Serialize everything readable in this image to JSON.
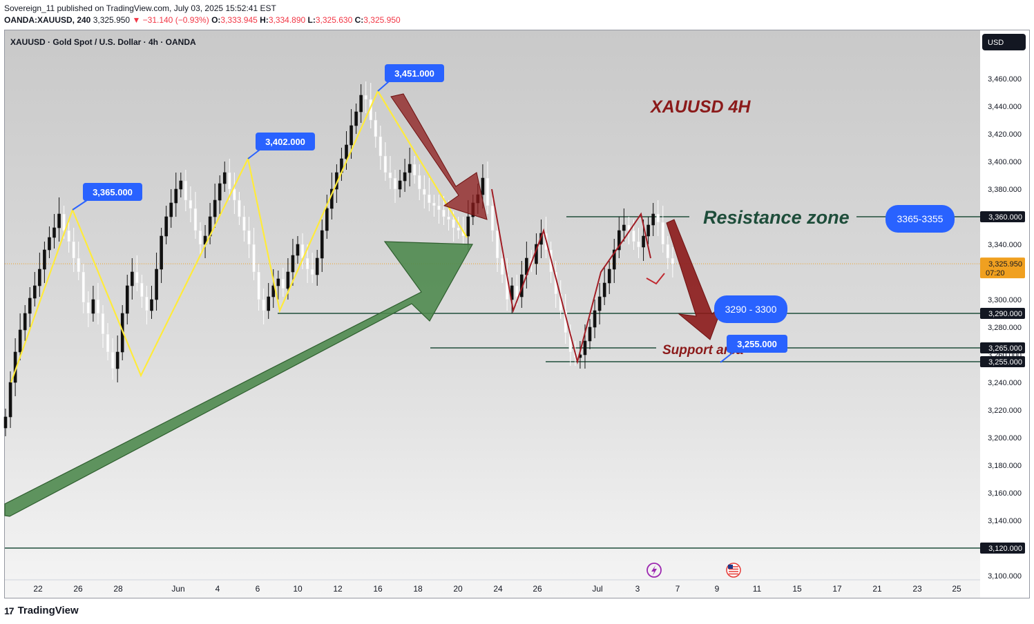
{
  "header": {
    "author_line": "Sovereign_11 published on TradingView.com, July 03, 2025 15:52:41 EST",
    "symbol": "OANDA:XAUUSD, 240",
    "last": "3,325.950",
    "change": "▼ −31.140 (−0.93%)",
    "ohlc": {
      "o_label": "O:",
      "o": "3,333.945",
      "h_label": "H:",
      "h": "3,334.890",
      "l_label": "L:",
      "l": "3,325.630",
      "c_label": "C:",
      "c": "3,325.950"
    }
  },
  "legend_title": "XAUUSD · Gold Spot / U.S. Dollar · 4h · OANDA",
  "currency_badge": "USD",
  "footer": {
    "brand": "TradingView",
    "logo": "17"
  },
  "colors": {
    "bullish_arrow": "#4f8a4f",
    "bearish_arrow": "#8b1a1a",
    "zigzag": "#ffeb3b",
    "callout": "#2962ff",
    "price_tag": "#f0a020",
    "level_tag": "#131722"
  },
  "chart_data": {
    "type": "candlestick",
    "title": "XAUUSD 4H",
    "symbol": "XAUUSD",
    "timeframe": "4h",
    "ylim": [
      3090,
      3490
    ],
    "y_ticks": [
      3100,
      3120,
      3140,
      3160,
      3180,
      3200,
      3220,
      3240,
      3260,
      3280,
      3300,
      3320,
      3340,
      3360,
      3380,
      3400,
      3420,
      3440,
      3460
    ],
    "x_tick_labels": [
      "22",
      "26",
      "28",
      "Jun",
      "4",
      "6",
      "10",
      "12",
      "16",
      "18",
      "20",
      "24",
      "26",
      "Jul",
      "3",
      "7",
      "9",
      "11",
      "15",
      "17",
      "21",
      "23",
      "25"
    ],
    "current_price": {
      "value": 3325.95,
      "label": "3,325.950",
      "countdown": "07:20"
    },
    "swing_highs": [
      {
        "date": "May 26",
        "price": 3365.0,
        "label": "3,365.000"
      },
      {
        "date": "Jun 5",
        "price": 3402.0,
        "label": "3,402.000"
      },
      {
        "date": "Jun 16",
        "price": 3451.0,
        "label": "3,451.000"
      }
    ],
    "horizontal_levels": [
      {
        "price": 3360,
        "label": "3,360.000"
      },
      {
        "price": 3290,
        "label": "3,290.000"
      },
      {
        "price": 3265,
        "label": "3,265.000"
      },
      {
        "price": 3255,
        "label": "3,255.000"
      },
      {
        "price": 3120,
        "label": "3,120.000"
      }
    ],
    "annotations": {
      "title_text": "XAUUSD 4H",
      "resistance_text": "Resistance zone",
      "resistance_badge": "3365-3355",
      "target_badge": "3290 - 3300",
      "support_text": "Support area",
      "support_badge": "3,255.000"
    },
    "zigzag_yellow": [
      {
        "x": "May 21",
        "y": 3245
      },
      {
        "x": "May 26",
        "y": 3365
      },
      {
        "x": "May 29",
        "y": 3245
      },
      {
        "x": "Jun 5",
        "y": 3402
      },
      {
        "x": "Jun 9",
        "y": 3292
      },
      {
        "x": "Jun 16",
        "y": 3451
      },
      {
        "x": "Jun 20",
        "y": 3345
      }
    ],
    "zigzag_red": [
      {
        "x": "Jun 23",
        "y": 3375
      },
      {
        "x": "Jun 24",
        "y": 3292
      },
      {
        "x": "Jun 26",
        "y": 3350
      },
      {
        "x": "Jun 30",
        "y": 3255
      },
      {
        "x": "Jul 1",
        "y": 3320
      },
      {
        "x": "Jul 2",
        "y": 3340
      },
      {
        "x": "Jul 3",
        "y": 3362
      },
      {
        "x": "Jul 3",
        "y": 3330
      }
    ],
    "candles_close": [
      3215,
      3240,
      3262,
      3278,
      3290,
      3301,
      3310,
      3322,
      3336,
      3345,
      3352,
      3362,
      3350,
      3342,
      3330,
      3320,
      3298,
      3290,
      3300,
      3290,
      3275,
      3262,
      3250,
      3262,
      3290,
      3310,
      3320,
      3312,
      3302,
      3292,
      3300,
      3322,
      3346,
      3360,
      3370,
      3380,
      3386,
      3372,
      3366,
      3350,
      3340,
      3346,
      3360,
      3372,
      3384,
      3392,
      3380,
      3372,
      3360,
      3350,
      3340,
      3320,
      3300,
      3292,
      3302,
      3310,
      3315,
      3308,
      3320,
      3332,
      3340,
      3330,
      3322,
      3318,
      3330,
      3350,
      3366,
      3380,
      3392,
      3402,
      3412,
      3426,
      3436,
      3448,
      3445,
      3430,
      3418,
      3404,
      3392,
      3388,
      3380,
      3386,
      3392,
      3398,
      3390,
      3380,
      3376,
      3370,
      3368,
      3365,
      3360,
      3358,
      3352,
      3350,
      3346,
      3360,
      3370,
      3376,
      3388,
      3368,
      3350,
      3330,
      3318,
      3300,
      3310,
      3302,
      3318,
      3330,
      3326,
      3340,
      3348,
      3336,
      3320,
      3304,
      3292,
      3276,
      3262,
      3258,
      3260,
      3270,
      3280,
      3292,
      3302,
      3312,
      3322,
      3336,
      3350,
      3354,
      3350,
      3342,
      3338,
      3346,
      3354,
      3362,
      3356,
      3340,
      3330,
      3326
    ]
  }
}
